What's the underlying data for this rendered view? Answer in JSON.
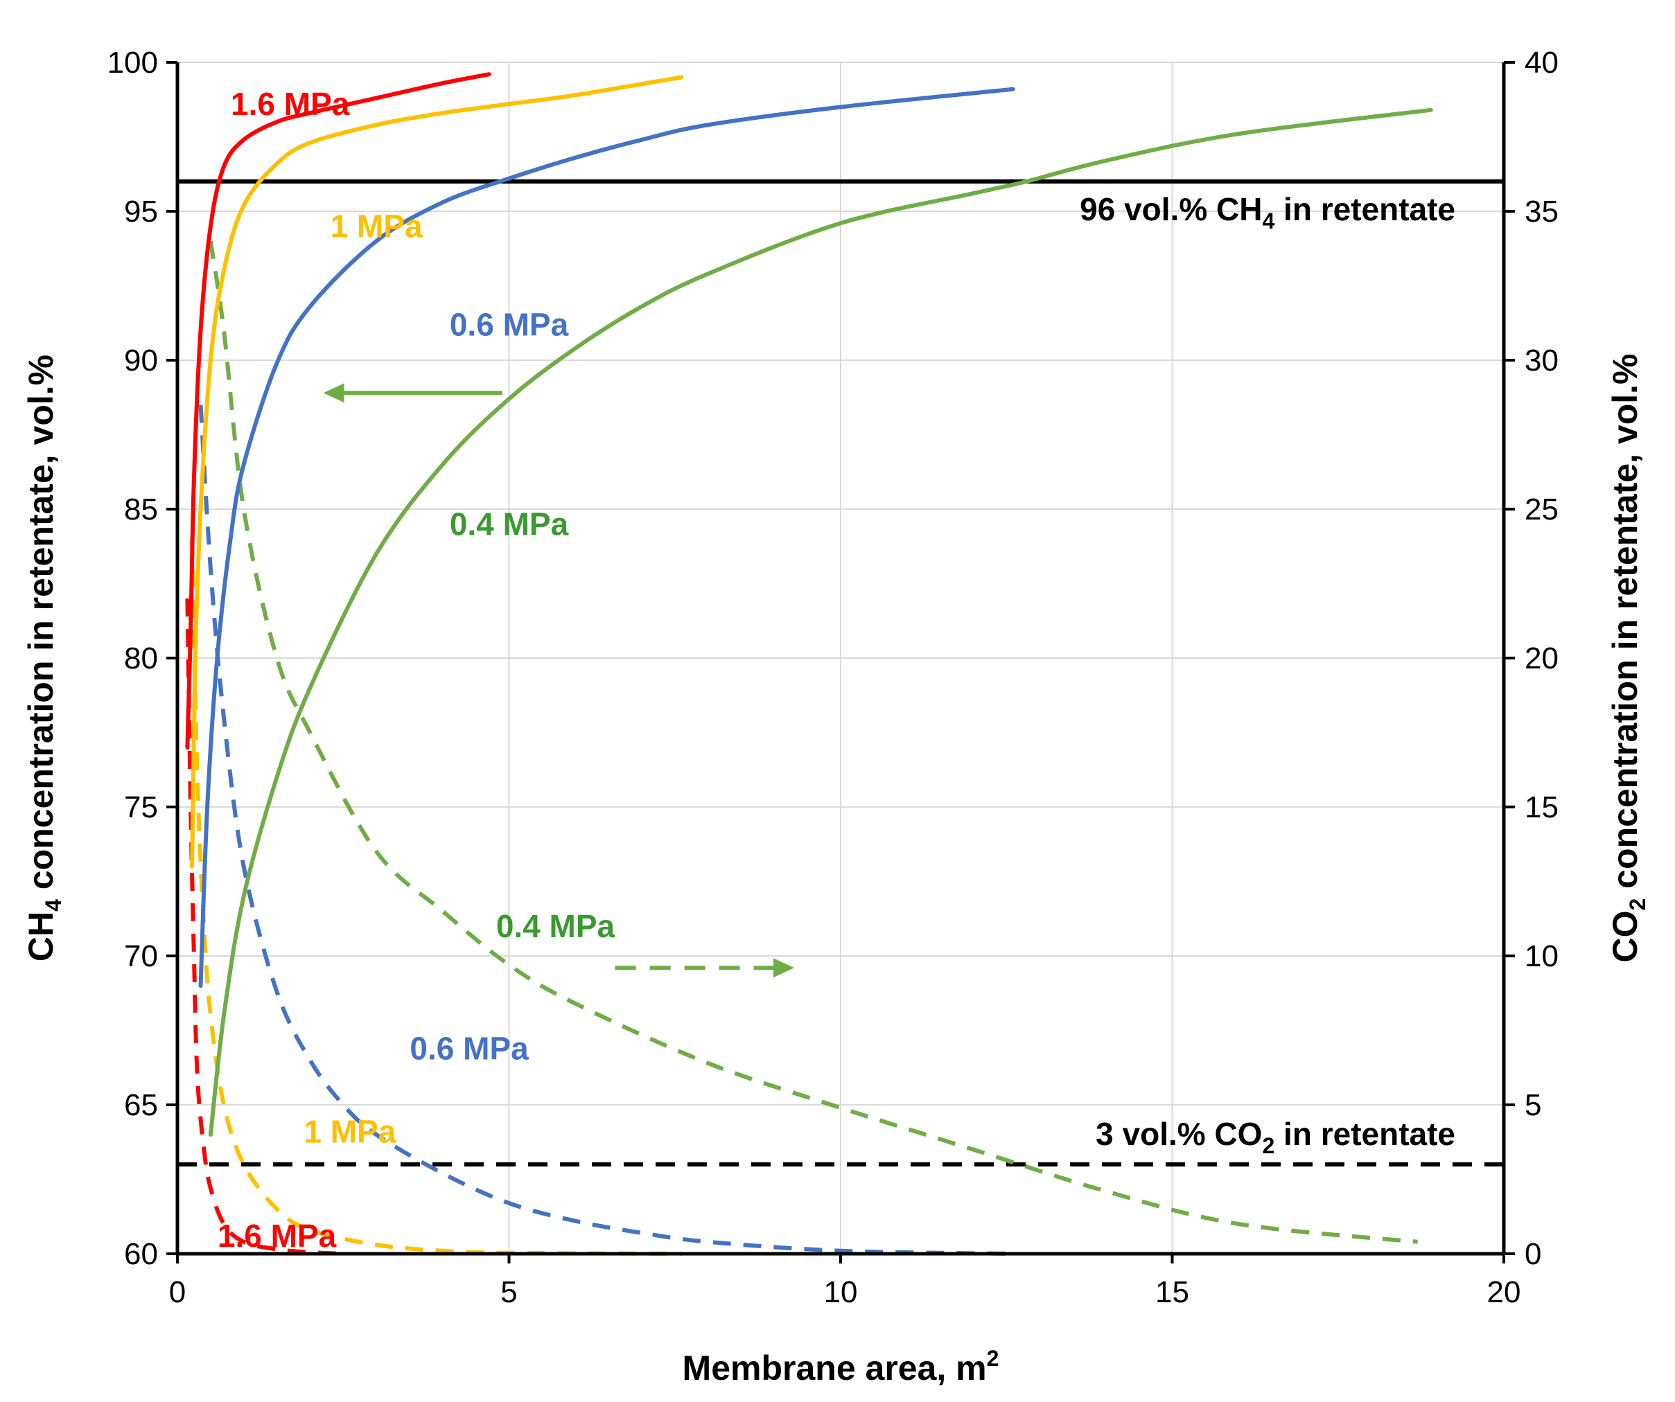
{
  "chart_data": {
    "type": "line",
    "title": "",
    "xlabel": {
      "main": "Membrane area, m",
      "sup": "2"
    },
    "ylabel_left": {
      "pre": "CH",
      "sub": "4",
      "post": " concentration in retentate, vol.%"
    },
    "ylabel_right": {
      "pre": "CO",
      "sub": "2",
      "post": " concentration in retentate, vol.%"
    },
    "xlim": [
      0,
      20
    ],
    "ylim_left": [
      60,
      100
    ],
    "ylim_right": [
      0,
      40
    ],
    "xticks": [
      "0",
      "5",
      "10",
      "15",
      "20"
    ],
    "yticks_left": [
      "60",
      "65",
      "70",
      "75",
      "80",
      "85",
      "90",
      "95",
      "100"
    ],
    "yticks_right": [
      "0",
      "5",
      "10",
      "15",
      "20",
      "25",
      "30",
      "35",
      "40"
    ],
    "grid": true,
    "colors": {
      "p16": "#ff0000",
      "p10": "#ffc000",
      "p06": "#4472c4",
      "p04": "#70ad47",
      "ref": "#000000"
    },
    "series_ch4": [
      {
        "name": "1.6 MPa",
        "color": "#ff0000",
        "x": [
          0.15,
          0.2,
          0.25,
          0.35,
          0.5,
          0.7,
          1.0,
          1.5,
          2.0,
          3.0,
          4.0,
          4.7
        ],
        "y": [
          77,
          81,
          86,
          91,
          94.5,
          96.5,
          97.4,
          98.0,
          98.3,
          98.8,
          99.3,
          99.6
        ]
      },
      {
        "name": "1 MPa",
        "color": "#ffc000",
        "x": [
          0.22,
          0.27,
          0.35,
          0.5,
          0.7,
          1.0,
          1.5,
          2.0,
          3.0,
          4.0,
          5.0,
          6.0,
          7.6
        ],
        "y": [
          73,
          80,
          85,
          90,
          93,
          95.2,
          96.6,
          97.3,
          97.9,
          98.3,
          98.6,
          98.9,
          99.5
        ]
      },
      {
        "name": "0.6 MPa",
        "color": "#4472c4",
        "x": [
          0.35,
          0.45,
          0.6,
          0.8,
          1.0,
          1.5,
          2.0,
          3.0,
          4.0,
          5.0,
          6.0,
          7.0,
          8.0,
          10.0,
          12.6
        ],
        "y": [
          69,
          75,
          80,
          84,
          86.5,
          89.9,
          91.8,
          94.0,
          95.3,
          96.1,
          96.8,
          97.4,
          97.9,
          98.5,
          99.1
        ]
      },
      {
        "name": "0.4 MPa",
        "color": "#70ad47",
        "x": [
          0.5,
          0.7,
          1.0,
          1.5,
          2.0,
          3.0,
          4.0,
          5.0,
          6.0,
          7.0,
          8.0,
          10.0,
          12.0,
          12.8,
          14.0,
          16.0,
          18.9
        ],
        "y": [
          64,
          68,
          72,
          76,
          79,
          83.5,
          86.5,
          88.7,
          90.4,
          91.8,
          92.9,
          94.6,
          95.6,
          96.0,
          96.7,
          97.6,
          98.4
        ]
      }
    ],
    "series_co2": [
      {
        "name": "1.6 MPa",
        "color": "#ff0000",
        "x": [
          0.15,
          0.2,
          0.25,
          0.3,
          0.4,
          0.5,
          0.7,
          1.0,
          1.5,
          2.0,
          2.5
        ],
        "y": [
          22,
          15,
          10,
          6,
          3.5,
          2.2,
          1.0,
          0.4,
          0.15,
          0.05,
          0.0
        ]
      },
      {
        "name": "1 MPa",
        "color": "#ffc000",
        "x": [
          0.22,
          0.3,
          0.4,
          0.5,
          0.7,
          1.0,
          1.5,
          2.0,
          3.0,
          4.0,
          5.0,
          7.6
        ],
        "y": [
          24,
          16,
          11,
          8,
          5.0,
          3.0,
          1.5,
          0.8,
          0.3,
          0.1,
          0.03,
          0.0
        ]
      },
      {
        "name": "0.6 MPa",
        "color": "#4472c4",
        "x": [
          0.35,
          0.5,
          0.7,
          1.0,
          1.5,
          2.0,
          2.5,
          3.0,
          4.0,
          5.0,
          6.0,
          7.0,
          8.0,
          10.0,
          12.6
        ],
        "y": [
          28.5,
          23,
          18,
          13,
          8.8,
          6.5,
          5.0,
          4.0,
          2.7,
          1.7,
          1.1,
          0.7,
          0.4,
          0.1,
          0.0
        ]
      },
      {
        "name": "0.4 MPa",
        "color": "#70ad47",
        "x": [
          0.5,
          0.7,
          1.0,
          1.5,
          2.0,
          3.0,
          4.0,
          5.0,
          6.0,
          8.0,
          10.0,
          12.0,
          14.0,
          16.0,
          18.7
        ],
        "y": [
          34,
          31,
          25,
          20,
          17.5,
          13.5,
          11.5,
          9.7,
          8.4,
          6.4,
          4.9,
          3.5,
          2.1,
          1.0,
          0.4
        ]
      }
    ],
    "reference_lines": [
      {
        "axis": "left",
        "value": 96,
        "style": "solid",
        "label": {
          "pre": "96 vol.% CH",
          "sub": "4",
          "post": " in retentate"
        }
      },
      {
        "axis": "right",
        "value": 3,
        "style": "dashed",
        "label": {
          "pre": "3 vol.% CO",
          "sub": "2",
          "post": " in retentate"
        }
      }
    ],
    "annotations": [
      {
        "text": "1.6 MPa",
        "color": "#ff0000",
        "x": 1.7,
        "y_left": 98.6
      },
      {
        "text": "1 MPa",
        "color": "#ffc000",
        "x": 3.0,
        "y_left": 94.5
      },
      {
        "text": "0.6 MPa",
        "color": "#4472c4",
        "x": 5.0,
        "y_left": 91.2
      },
      {
        "text": "0.4 MPa",
        "color": "#3a9a30",
        "x": 5.0,
        "y_left": 84.5
      },
      {
        "text": "0.4 MPa",
        "color": "#3a9a30",
        "x": 5.7,
        "y_left": 71.0
      },
      {
        "text": "0.6 MPa",
        "color": "#4472c4",
        "x": 4.4,
        "y_left": 66.9
      },
      {
        "text": "1 MPa",
        "color": "#ffc000",
        "x": 2.6,
        "y_left": 64.1
      },
      {
        "text": "1.6 MPa",
        "color": "#ff0000",
        "x": 1.5,
        "y_left": 60.6
      }
    ],
    "arrows": [
      {
        "direction": "left",
        "style": "solid",
        "color": "#70ad47",
        "from_x": 4.9,
        "to_x": 2.2,
        "y_left": 88.9
      },
      {
        "direction": "right",
        "style": "dashed",
        "color": "#70ad47",
        "from_x": 6.6,
        "to_x": 9.3,
        "y_left": 69.6
      }
    ]
  }
}
